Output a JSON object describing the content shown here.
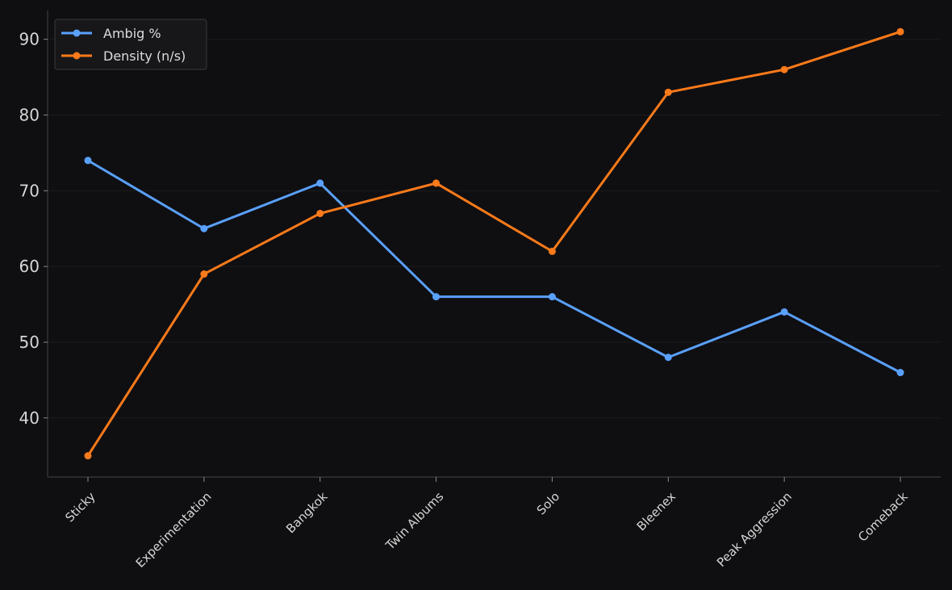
{
  "chart_data": {
    "type": "line",
    "title": "",
    "xlabel": "",
    "ylabel": "",
    "categories": [
      "Sticky",
      "Experimentation",
      "Bangkok",
      "Twin Albums",
      "Solo",
      "Bleenex",
      "Peak Aggression",
      "Comeback"
    ],
    "series": [
      {
        "name": "Ambig %",
        "color": "#5aa0ff",
        "values": [
          74,
          65,
          71,
          56,
          56,
          48,
          54,
          46
        ]
      },
      {
        "name": "Density (n/s)",
        "color": "#ff7a1a",
        "values": [
          35,
          59,
          67,
          71,
          62,
          83,
          86,
          91
        ]
      }
    ],
    "ylim": [
      32.2,
      93.8
    ],
    "yticks": [
      40,
      50,
      60,
      70,
      80,
      90
    ],
    "grid": true,
    "legend_position": "top-left",
    "colors": {
      "background": "#0f0f11",
      "axis": "#3a3a3e",
      "grid": "#1c1c20",
      "tick_text": "#d6d6d6"
    }
  }
}
